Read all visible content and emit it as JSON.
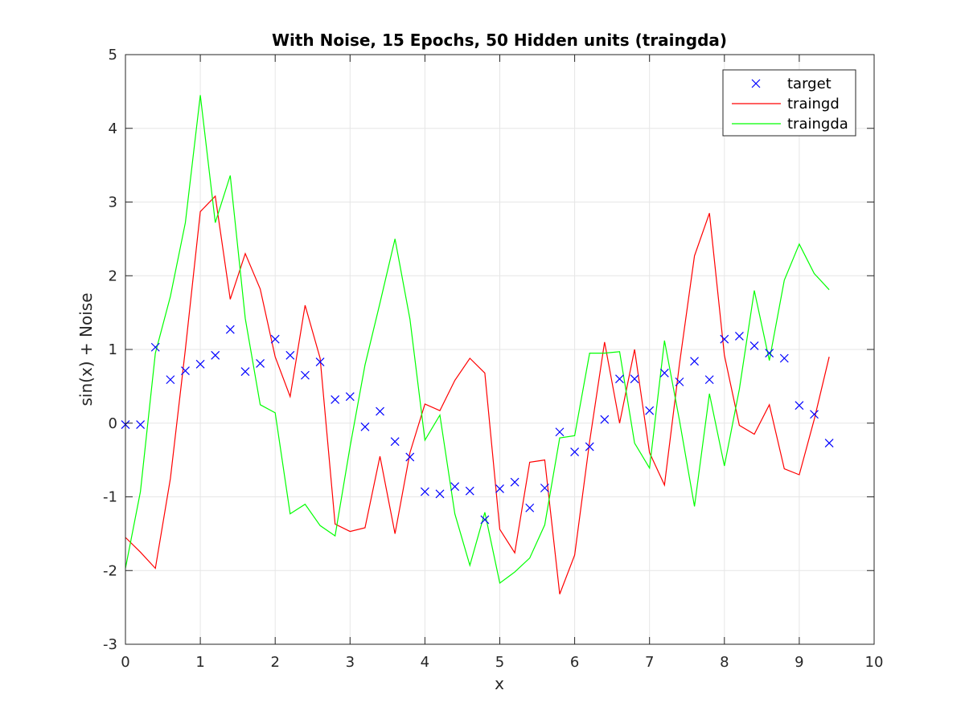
{
  "chart_data": {
    "type": "line",
    "title": "With Noise, 15 Epochs, 50 Hidden units (traingda)",
    "xlabel": "x",
    "ylabel": "sin(x) + Noise",
    "xlim": [
      0,
      10
    ],
    "ylim": [
      -3,
      5
    ],
    "xticks": [
      0,
      1,
      2,
      3,
      4,
      5,
      6,
      7,
      8,
      9,
      10
    ],
    "yticks": [
      -3,
      -2,
      -1,
      0,
      1,
      2,
      3,
      4,
      5
    ],
    "grid": true,
    "legend_position": "top-right",
    "x": [
      0,
      0.2,
      0.4,
      0.6,
      0.8,
      1.0,
      1.2,
      1.4,
      1.6,
      1.8,
      2.0,
      2.2,
      2.4,
      2.6,
      2.8,
      3.0,
      3.2,
      3.4,
      3.6,
      3.8,
      4.0,
      4.2,
      4.4,
      4.6,
      4.8,
      5.0,
      5.2,
      5.4,
      5.6,
      5.8,
      6.0,
      6.2,
      6.4,
      6.6,
      6.8,
      7.0,
      7.2,
      7.4,
      7.6,
      7.8,
      8.0,
      8.2,
      8.4,
      8.6,
      8.8,
      9.0,
      9.2,
      9.4
    ],
    "series": [
      {
        "name": "target",
        "style": "marker-x",
        "color": "#0000ff",
        "values": [
          -0.02,
          -0.02,
          1.03,
          0.59,
          0.71,
          0.8,
          0.92,
          1.27,
          0.7,
          0.81,
          1.14,
          0.92,
          0.65,
          0.83,
          0.32,
          0.36,
          -0.05,
          0.16,
          -0.25,
          -0.46,
          -0.93,
          -0.96,
          -0.86,
          -0.92,
          -1.31,
          -0.89,
          -0.8,
          -1.15,
          -0.88,
          -0.12,
          -0.39,
          -0.32,
          0.05,
          0.6,
          0.6,
          0.17,
          0.68,
          0.56,
          0.84,
          0.59,
          1.14,
          1.18,
          1.05,
          0.95,
          0.88,
          0.24,
          0.12,
          -0.27
        ]
      },
      {
        "name": "traingd",
        "style": "line",
        "color": "#ff0000",
        "values": [
          -1.55,
          -1.75,
          -1.97,
          -0.75,
          1.0,
          2.87,
          3.08,
          1.68,
          2.3,
          1.82,
          0.9,
          0.36,
          1.6,
          0.88,
          -1.37,
          -1.47,
          -1.42,
          -0.45,
          -1.5,
          -0.4,
          0.26,
          0.17,
          0.58,
          0.88,
          0.68,
          -1.44,
          -1.76,
          -0.53,
          -0.5,
          -2.32,
          -1.79,
          -0.25,
          1.1,
          0.0,
          1.0,
          -0.4,
          -0.84,
          0.8,
          2.27,
          2.85,
          0.92,
          -0.03,
          -0.15,
          0.25,
          -0.62,
          -0.7,
          0.05,
          0.9
        ]
      },
      {
        "name": "traingda",
        "style": "line",
        "color": "#00ff00",
        "values": [
          -1.97,
          -0.93,
          0.95,
          1.72,
          2.72,
          4.45,
          2.72,
          3.36,
          1.42,
          0.25,
          0.14,
          -1.23,
          -1.1,
          -1.39,
          -1.53,
          -0.32,
          0.79,
          1.63,
          2.5,
          1.41,
          -0.23,
          0.11,
          -1.23,
          -1.93,
          -1.21,
          -2.17,
          -2.02,
          -1.83,
          -1.38,
          -0.2,
          -0.17,
          0.95,
          0.95,
          0.97,
          -0.27,
          -0.61,
          1.12,
          0.04,
          -1.13,
          0.4,
          -0.58,
          0.46,
          1.8,
          0.85,
          1.94,
          2.43,
          2.03,
          1.81
        ]
      }
    ]
  }
}
